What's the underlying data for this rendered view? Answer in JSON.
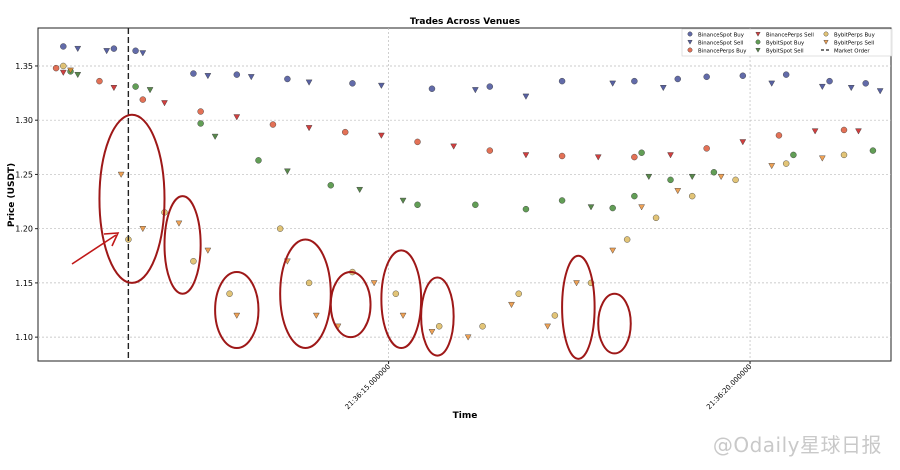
{
  "chart_data": {
    "type": "scatter",
    "title": "Trades Across Venues",
    "xlabel": "Time",
    "ylabel": "Price (USDT)",
    "x_unit": "seconds",
    "x_ticks": [
      {
        "value": 15,
        "label": "21:36:15.000000"
      },
      {
        "value": 20,
        "label": "21:36:20.000000"
      }
    ],
    "xlim": [
      10.15,
      21.95
    ],
    "ylim": [
      1.078,
      1.385
    ],
    "y_ticks": [
      1.1,
      1.15,
      1.2,
      1.25,
      1.3,
      1.35
    ],
    "grid": true,
    "legend_position": "top-right",
    "market_order_x": 11.4,
    "series": [
      {
        "name": "BinanceSpot Buy",
        "marker": "circle",
        "color": "#2e3a8c",
        "points": [
          [
            10.5,
            1.368
          ],
          [
            11.2,
            1.366
          ],
          [
            11.5,
            1.364
          ],
          [
            12.3,
            1.343
          ],
          [
            12.9,
            1.342
          ],
          [
            13.6,
            1.338
          ],
          [
            14.5,
            1.334
          ],
          [
            15.6,
            1.329
          ],
          [
            16.4,
            1.331
          ],
          [
            17.4,
            1.336
          ],
          [
            18.4,
            1.336
          ],
          [
            19.0,
            1.338
          ],
          [
            19.4,
            1.34
          ],
          [
            19.9,
            1.341
          ],
          [
            20.5,
            1.342
          ],
          [
            21.1,
            1.336
          ],
          [
            21.6,
            1.334
          ]
        ]
      },
      {
        "name": "BinanceSpot Sell",
        "marker": "triangle-down",
        "color": "#2e3a8c",
        "points": [
          [
            10.7,
            1.366
          ],
          [
            11.1,
            1.364
          ],
          [
            11.6,
            1.362
          ],
          [
            12.5,
            1.341
          ],
          [
            13.1,
            1.34
          ],
          [
            13.9,
            1.335
          ],
          [
            14.9,
            1.332
          ],
          [
            16.2,
            1.328
          ],
          [
            16.9,
            1.322
          ],
          [
            18.1,
            1.334
          ],
          [
            18.8,
            1.33
          ],
          [
            20.3,
            1.334
          ],
          [
            21.0,
            1.331
          ],
          [
            21.4,
            1.33
          ],
          [
            21.8,
            1.327
          ]
        ]
      },
      {
        "name": "BinancePerps Buy",
        "marker": "circle",
        "color": "#d9421e",
        "points": [
          [
            10.4,
            1.348
          ],
          [
            11.0,
            1.336
          ],
          [
            11.6,
            1.319
          ],
          [
            12.4,
            1.308
          ],
          [
            13.4,
            1.296
          ],
          [
            14.4,
            1.289
          ],
          [
            15.4,
            1.28
          ],
          [
            16.4,
            1.272
          ],
          [
            17.4,
            1.267
          ],
          [
            18.4,
            1.266
          ],
          [
            19.4,
            1.274
          ],
          [
            20.4,
            1.286
          ],
          [
            21.3,
            1.291
          ]
        ]
      },
      {
        "name": "BinancePerps Sell",
        "marker": "triangle-down",
        "color": "#c40f0f",
        "points": [
          [
            10.5,
            1.344
          ],
          [
            11.2,
            1.33
          ],
          [
            11.9,
            1.316
          ],
          [
            12.9,
            1.303
          ],
          [
            13.9,
            1.293
          ],
          [
            14.9,
            1.286
          ],
          [
            15.9,
            1.276
          ],
          [
            16.9,
            1.268
          ],
          [
            17.9,
            1.266
          ],
          [
            18.9,
            1.268
          ],
          [
            19.9,
            1.28
          ],
          [
            20.9,
            1.29
          ],
          [
            21.5,
            1.29
          ]
        ]
      },
      {
        "name": "BybitSpot Buy",
        "marker": "circle",
        "color": "#2e7d1e",
        "points": [
          [
            10.6,
            1.345
          ],
          [
            11.5,
            1.331
          ],
          [
            12.4,
            1.297
          ],
          [
            13.2,
            1.263
          ],
          [
            14.2,
            1.24
          ],
          [
            15.4,
            1.222
          ],
          [
            16.2,
            1.222
          ],
          [
            16.9,
            1.218
          ],
          [
            17.4,
            1.226
          ],
          [
            18.1,
            1.219
          ],
          [
            18.4,
            1.23
          ],
          [
            18.5,
            1.27
          ],
          [
            18.9,
            1.245
          ],
          [
            19.5,
            1.252
          ],
          [
            20.6,
            1.268
          ],
          [
            21.7,
            1.272
          ]
        ]
      },
      {
        "name": "BybitSpot Sell",
        "marker": "triangle-down",
        "color": "#2e6a1e",
        "points": [
          [
            10.7,
            1.342
          ],
          [
            11.7,
            1.328
          ],
          [
            12.6,
            1.285
          ],
          [
            13.6,
            1.253
          ],
          [
            14.6,
            1.236
          ],
          [
            15.2,
            1.226
          ],
          [
            17.8,
            1.22
          ],
          [
            18.6,
            1.248
          ],
          [
            19.2,
            1.248
          ]
        ]
      },
      {
        "name": "BybitPerps Buy",
        "marker": "circle",
        "color": "#d8b04a",
        "points": [
          [
            10.5,
            1.35
          ],
          [
            11.4,
            1.19
          ],
          [
            11.9,
            1.215
          ],
          [
            12.3,
            1.17
          ],
          [
            12.8,
            1.14
          ],
          [
            13.5,
            1.2
          ],
          [
            13.9,
            1.15
          ],
          [
            14.5,
            1.16
          ],
          [
            15.1,
            1.14
          ],
          [
            15.7,
            1.11
          ],
          [
            16.3,
            1.11
          ],
          [
            16.8,
            1.14
          ],
          [
            17.3,
            1.12
          ],
          [
            17.8,
            1.15
          ],
          [
            18.3,
            1.19
          ],
          [
            18.7,
            1.21
          ],
          [
            19.2,
            1.23
          ],
          [
            19.8,
            1.245
          ],
          [
            20.5,
            1.26
          ],
          [
            21.3,
            1.268
          ]
        ]
      },
      {
        "name": "BybitPerps Sell",
        "marker": "triangle-down",
        "color": "#e88a2c",
        "points": [
          [
            10.6,
            1.346
          ],
          [
            11.3,
            1.25
          ],
          [
            11.6,
            1.2
          ],
          [
            12.1,
            1.205
          ],
          [
            12.5,
            1.18
          ],
          [
            12.9,
            1.12
          ],
          [
            13.6,
            1.17
          ],
          [
            14.0,
            1.12
          ],
          [
            14.3,
            1.11
          ],
          [
            14.8,
            1.15
          ],
          [
            15.2,
            1.12
          ],
          [
            15.6,
            1.105
          ],
          [
            16.1,
            1.1
          ],
          [
            16.7,
            1.13
          ],
          [
            17.2,
            1.11
          ],
          [
            17.6,
            1.15
          ],
          [
            18.1,
            1.18
          ],
          [
            18.5,
            1.22
          ],
          [
            19.0,
            1.235
          ],
          [
            19.6,
            1.248
          ],
          [
            20.3,
            1.258
          ],
          [
            21.0,
            1.265
          ]
        ]
      },
      {
        "name": "Market Order",
        "marker": "dashed-line",
        "color": "#222222",
        "points": []
      }
    ],
    "annotations": {
      "arrow_color": "#c01818",
      "ellipse_color": "#9e1818",
      "ellipses": [
        {
          "x": [
            11.0,
            11.9
          ],
          "y": [
            1.15,
            1.305
          ]
        },
        {
          "x": [
            11.9,
            12.4
          ],
          "y": [
            1.14,
            1.23
          ]
        },
        {
          "x": [
            12.6,
            13.2
          ],
          "y": [
            1.09,
            1.16
          ]
        },
        {
          "x": [
            13.5,
            14.2
          ],
          "y": [
            1.09,
            1.19
          ]
        },
        {
          "x": [
            14.2,
            14.75
          ],
          "y": [
            1.1,
            1.16
          ]
        },
        {
          "x": [
            14.9,
            15.45
          ],
          "y": [
            1.09,
            1.18
          ]
        },
        {
          "x": [
            15.45,
            15.9
          ],
          "y": [
            1.083,
            1.155
          ]
        },
        {
          "x": [
            17.4,
            17.85
          ],
          "y": [
            1.08,
            1.175
          ]
        },
        {
          "x": [
            17.9,
            18.35
          ],
          "y": [
            1.085,
            1.14
          ]
        }
      ]
    }
  },
  "watermark": "@Odaily星球日报"
}
